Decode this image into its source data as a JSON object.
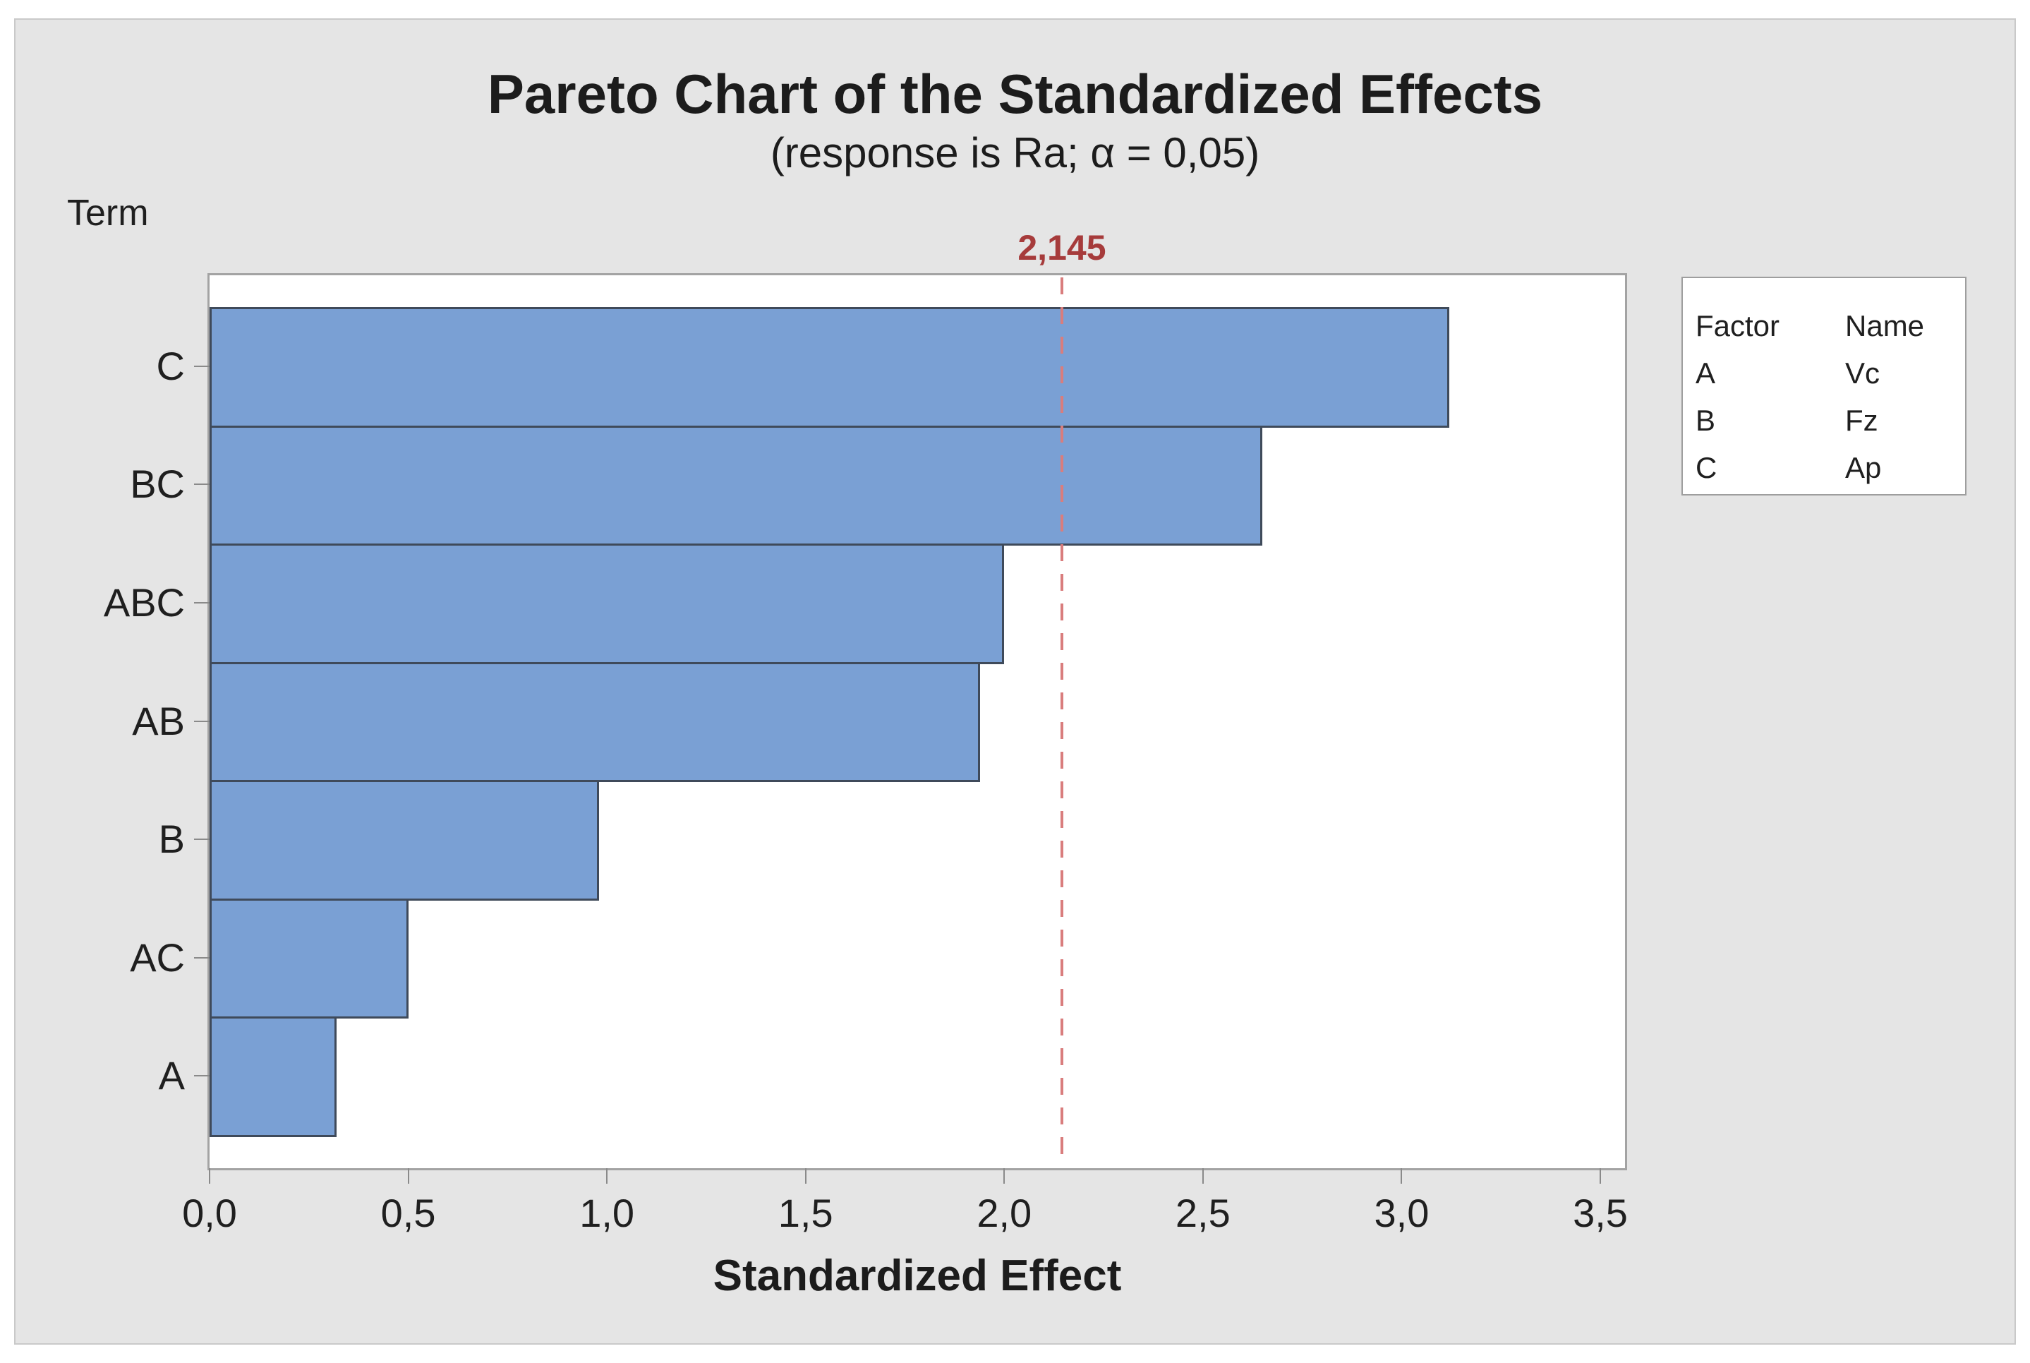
{
  "colors": {
    "panel_background": "#e5e5e5",
    "plot_background": "#ffffff",
    "bar_fill": "#7aa0d4",
    "bar_border": "#3f4a5a",
    "reference_line": "#d97d7d",
    "reference_label": "#a63b3b",
    "axis_border": "#a3a3a3",
    "text": "#1f1f1f"
  },
  "chart_data": {
    "type": "bar",
    "orientation": "horizontal",
    "title": "Pareto Chart of the Standardized Effects",
    "subtitle": "(response is Ra; α = 0,05)",
    "ylabel": "Term",
    "xlabel": "Standardized Effect",
    "categories": [
      "C",
      "BC",
      "ABC",
      "AB",
      "B",
      "AC",
      "A"
    ],
    "values": [
      3.12,
      2.65,
      2.0,
      1.94,
      0.98,
      0.5,
      0.32
    ],
    "xlim": [
      0,
      3.56
    ],
    "xticks": [
      0.0,
      0.5,
      1.0,
      1.5,
      2.0,
      2.5,
      3.0,
      3.5
    ],
    "xtick_labels": [
      "0,0",
      "0,5",
      "1,0",
      "1,5",
      "2,0",
      "2,5",
      "3,0",
      "3,5"
    ],
    "grid": false,
    "reference_line": {
      "value": 2.145,
      "label": "2,145"
    },
    "legend": {
      "position": "outside-right",
      "headers": [
        "Factor",
        "Name"
      ],
      "rows": [
        {
          "factor": "A",
          "name": "Vc"
        },
        {
          "factor": "B",
          "name": "Fz"
        },
        {
          "factor": "C",
          "name": "Ap"
        }
      ]
    }
  }
}
